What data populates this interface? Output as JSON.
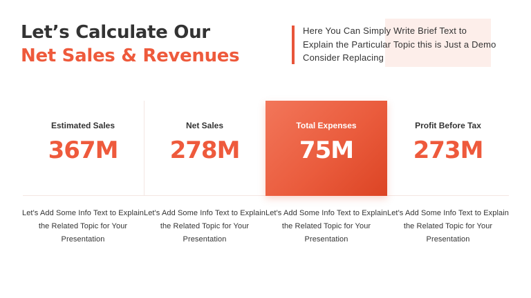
{
  "header": {
    "title_line1": "Let’s Calculate Our",
    "title_line2": "Net Sales & Revenues",
    "intro_text": "Here You Can Simply Write Brief Text to Explain the Particular Topic this is Just a Demo Consider Replacing"
  },
  "colors": {
    "accent": "#ee5a3c",
    "text_dark": "#333333",
    "highlight_bg": "#fdeeea"
  },
  "metrics": [
    {
      "label": "Estimated Sales",
      "value": "367M",
      "active": false,
      "description": "Let's Add Some Info Text to Explain the Related Topic for Your Presentation"
    },
    {
      "label": "Net Sales",
      "value": "278M",
      "active": false,
      "description": "Let's Add Some Info Text to Explain the Related Topic for Your Presentation"
    },
    {
      "label": "Total Expenses",
      "value": "75M",
      "active": true,
      "description": "Let's Add Some Info Text to Explain the Related Topic for Your Presentation"
    },
    {
      "label": "Profit Before Tax",
      "value": "273M",
      "active": false,
      "description": "Let's Add Some Info Text to Explain the Related Topic for Your Presentation"
    }
  ]
}
